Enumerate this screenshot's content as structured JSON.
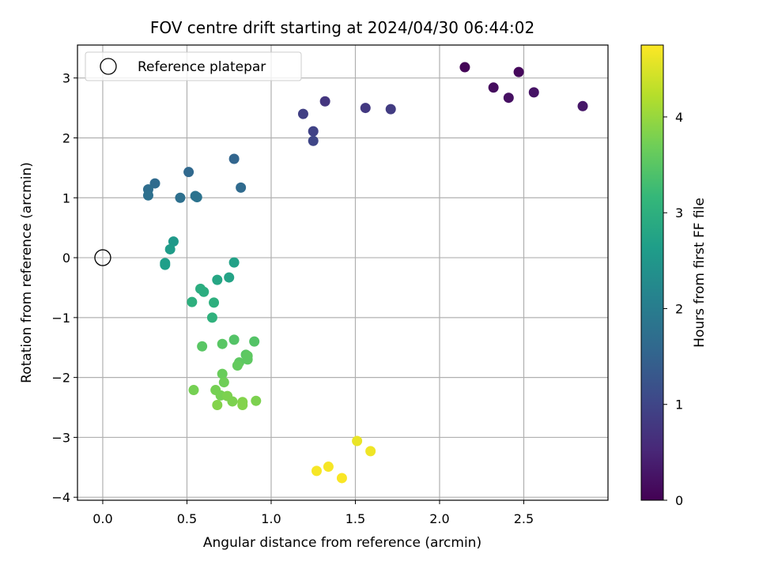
{
  "chart_data": {
    "type": "scatter",
    "title": "FOV centre drift starting at 2024/04/30 06:44:02",
    "xlabel": "Angular distance from reference (arcmin)",
    "ylabel": "Rotation from reference (arcmin)",
    "xlim": [
      -0.15,
      3.0
    ],
    "ylim": [
      -4.05,
      3.55
    ],
    "x_ticks": [
      0.0,
      0.5,
      1.0,
      1.5,
      2.0,
      2.5
    ],
    "x_tick_labels": [
      "0.0",
      "0.5",
      "1.0",
      "1.5",
      "2.0",
      "2.5"
    ],
    "y_ticks": [
      3,
      2,
      1,
      0,
      -1,
      -2,
      -3,
      -4
    ],
    "y_tick_labels": [
      "3",
      "2",
      "1",
      "0",
      "−1",
      "−2",
      "−3",
      "−4"
    ],
    "grid": true,
    "legend": {
      "placement": "top-left",
      "entries": [
        {
          "label": "Reference platepar",
          "marker": "open-circle"
        }
      ]
    },
    "colorbar": {
      "label": "Hours from first FF file",
      "range": [
        0,
        4.75
      ],
      "colormap": "viridis",
      "ticks": [
        0,
        1,
        2,
        3,
        4
      ],
      "tick_labels": [
        "0",
        "1",
        "2",
        "3",
        "4"
      ]
    },
    "reference_point": {
      "x": 0.0,
      "y": 0.0
    },
    "points": [
      {
        "x": 2.15,
        "y": 3.18,
        "c": 0.05
      },
      {
        "x": 2.47,
        "y": 3.1,
        "c": 0.1
      },
      {
        "x": 2.32,
        "y": 2.84,
        "c": 0.15
      },
      {
        "x": 2.41,
        "y": 2.67,
        "c": 0.2
      },
      {
        "x": 2.56,
        "y": 2.76,
        "c": 0.25
      },
      {
        "x": 2.85,
        "y": 2.53,
        "c": 0.3
      },
      {
        "x": 1.32,
        "y": 2.61,
        "c": 0.75
      },
      {
        "x": 1.56,
        "y": 2.5,
        "c": 0.8
      },
      {
        "x": 1.71,
        "y": 2.48,
        "c": 0.85
      },
      {
        "x": 1.19,
        "y": 2.4,
        "c": 0.9
      },
      {
        "x": 1.25,
        "y": 2.11,
        "c": 0.95
      },
      {
        "x": 1.25,
        "y": 1.95,
        "c": 1.0
      },
      {
        "x": 0.78,
        "y": 1.65,
        "c": 1.55
      },
      {
        "x": 0.51,
        "y": 1.43,
        "c": 1.6
      },
      {
        "x": 0.31,
        "y": 1.24,
        "c": 1.65
      },
      {
        "x": 0.82,
        "y": 1.17,
        "c": 1.65
      },
      {
        "x": 0.27,
        "y": 1.14,
        "c": 1.7
      },
      {
        "x": 0.27,
        "y": 1.04,
        "c": 1.75
      },
      {
        "x": 0.46,
        "y": 1.0,
        "c": 1.75
      },
      {
        "x": 0.55,
        "y": 1.03,
        "c": 1.8
      },
      {
        "x": 0.56,
        "y": 1.01,
        "c": 1.8
      },
      {
        "x": 0.42,
        "y": 0.27,
        "c": 2.55
      },
      {
        "x": 0.4,
        "y": 0.14,
        "c": 2.6
      },
      {
        "x": 0.37,
        "y": -0.09,
        "c": 2.65
      },
      {
        "x": 0.37,
        "y": -0.12,
        "c": 2.65
      },
      {
        "x": 0.78,
        "y": -0.08,
        "c": 2.7
      },
      {
        "x": 0.75,
        "y": -0.33,
        "c": 2.75
      },
      {
        "x": 0.68,
        "y": -0.37,
        "c": 2.8
      },
      {
        "x": 0.58,
        "y": -0.52,
        "c": 2.95
      },
      {
        "x": 0.6,
        "y": -0.57,
        "c": 2.95
      },
      {
        "x": 0.53,
        "y": -0.74,
        "c": 3.0
      },
      {
        "x": 0.66,
        "y": -0.75,
        "c": 3.0
      },
      {
        "x": 0.65,
        "y": -1.0,
        "c": 3.05
      },
      {
        "x": 0.78,
        "y": -1.37,
        "c": 3.45
      },
      {
        "x": 0.9,
        "y": -1.4,
        "c": 3.45
      },
      {
        "x": 0.71,
        "y": -1.44,
        "c": 3.5
      },
      {
        "x": 0.59,
        "y": -1.48,
        "c": 3.5
      },
      {
        "x": 0.85,
        "y": -1.62,
        "c": 3.5
      },
      {
        "x": 0.86,
        "y": -1.64,
        "c": 3.55
      },
      {
        "x": 0.86,
        "y": -1.7,
        "c": 3.55
      },
      {
        "x": 0.81,
        "y": -1.75,
        "c": 3.55
      },
      {
        "x": 0.8,
        "y": -1.8,
        "c": 3.6
      },
      {
        "x": 0.71,
        "y": -1.94,
        "c": 3.65
      },
      {
        "x": 0.72,
        "y": -2.08,
        "c": 3.7
      },
      {
        "x": 0.54,
        "y": -2.21,
        "c": 3.75
      },
      {
        "x": 0.67,
        "y": -2.21,
        "c": 3.75
      },
      {
        "x": 0.7,
        "y": -2.3,
        "c": 3.75
      },
      {
        "x": 0.74,
        "y": -2.31,
        "c": 3.8
      },
      {
        "x": 0.77,
        "y": -2.4,
        "c": 3.8
      },
      {
        "x": 0.91,
        "y": -2.39,
        "c": 3.8
      },
      {
        "x": 0.83,
        "y": -2.41,
        "c": 3.85
      },
      {
        "x": 0.68,
        "y": -2.46,
        "c": 3.85
      },
      {
        "x": 0.83,
        "y": -2.46,
        "c": 3.85
      },
      {
        "x": 1.51,
        "y": -3.06,
        "c": 4.6
      },
      {
        "x": 1.59,
        "y": -3.23,
        "c": 4.65
      },
      {
        "x": 1.34,
        "y": -3.49,
        "c": 4.7
      },
      {
        "x": 1.27,
        "y": -3.56,
        "c": 4.7
      },
      {
        "x": 1.42,
        "y": -3.68,
        "c": 4.72
      }
    ]
  }
}
